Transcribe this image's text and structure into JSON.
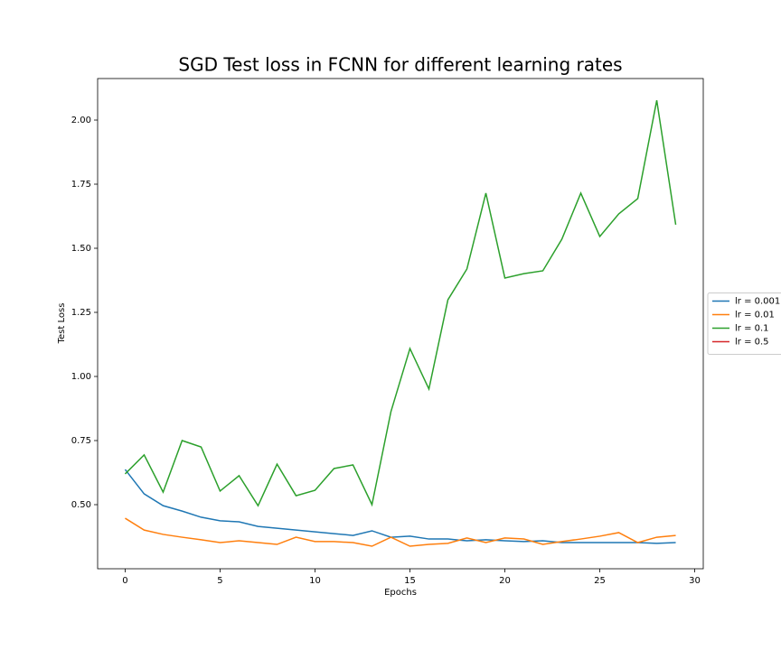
{
  "chart_data": {
    "type": "line",
    "title": "SGD Test loss in FCNN for different learning rates",
    "xlabel": "Epochs",
    "ylabel": "Test Loss",
    "x": [
      0,
      1,
      2,
      3,
      4,
      5,
      6,
      7,
      8,
      9,
      10,
      11,
      12,
      13,
      14,
      15,
      16,
      17,
      18,
      19,
      20,
      21,
      22,
      23,
      24,
      25,
      26,
      27,
      28,
      29
    ],
    "series": [
      {
        "name": "lr = 0.001",
        "color": "#1f77b4",
        "values": [
          0.637,
          0.542,
          0.496,
          0.475,
          0.451,
          0.437,
          0.433,
          0.415,
          0.408,
          0.401,
          0.394,
          0.387,
          0.38,
          0.398,
          0.373,
          0.377,
          0.366,
          0.366,
          0.359,
          0.363,
          0.359,
          0.356,
          0.359,
          0.352,
          0.352,
          0.352,
          0.352,
          0.352,
          0.349,
          0.352
        ]
      },
      {
        "name": "lr = 0.01",
        "color": "#ff7f0e",
        "values": [
          0.447,
          0.401,
          0.384,
          0.373,
          0.363,
          0.352,
          0.359,
          0.352,
          0.345,
          0.373,
          0.356,
          0.356,
          0.352,
          0.338,
          0.373,
          0.338,
          0.345,
          0.349,
          0.37,
          0.352,
          0.37,
          0.366,
          0.345,
          0.356,
          0.366,
          0.377,
          0.391,
          0.352,
          0.373,
          0.38
        ]
      },
      {
        "name": "lr = 0.1",
        "color": "#2ca02c",
        "values": [
          0.62,
          0.694,
          0.549,
          0.75,
          0.725,
          0.553,
          0.613,
          0.496,
          0.658,
          0.535,
          0.556,
          0.641,
          0.655,
          0.5,
          0.863,
          1.109,
          0.951,
          1.299,
          1.419,
          1.715,
          1.384,
          1.401,
          1.412,
          1.535,
          1.715,
          1.546,
          1.634,
          1.694,
          2.077,
          1.592
        ]
      },
      {
        "name": "lr = 0.5",
        "color": "#d62728",
        "values": [
          null,
          null,
          null,
          null,
          null,
          null,
          null,
          null,
          null,
          null,
          null,
          null,
          null,
          null,
          null,
          null,
          null,
          null,
          null,
          null,
          null,
          null,
          null,
          null,
          null,
          null,
          null,
          null,
          null,
          null
        ]
      }
    ],
    "xlim": [
      -1.45,
      30.45
    ],
    "xticks": [
      0,
      5,
      10,
      15,
      20,
      25,
      30
    ],
    "ylim": [
      0.25,
      2.162
    ],
    "yticks": [
      {
        "value": 0.5,
        "label": "0.50"
      },
      {
        "value": 0.75,
        "label": "0.75"
      },
      {
        "value": 1.0,
        "label": "1.00"
      },
      {
        "value": 1.25,
        "label": "1.25"
      },
      {
        "value": 1.5,
        "label": "1.50"
      },
      {
        "value": 1.75,
        "label": "1.75"
      },
      {
        "value": 2.0,
        "label": "2.00"
      }
    ],
    "legend": "right"
  }
}
